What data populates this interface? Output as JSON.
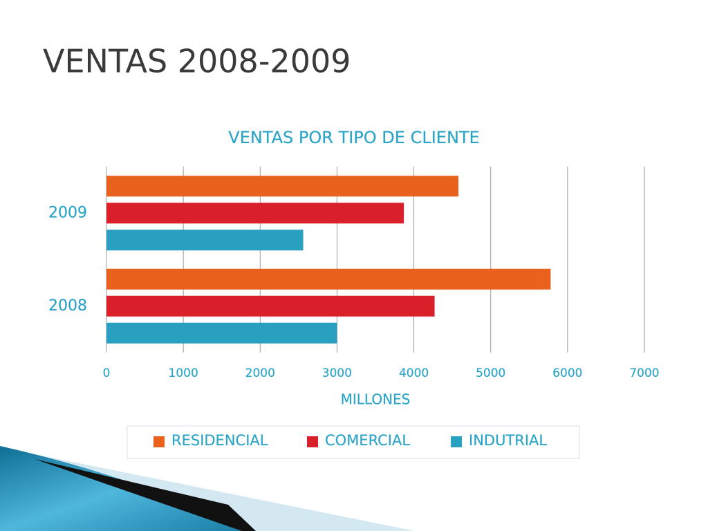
{
  "slide_title": "VENTAS 2008-2009",
  "chart_data": {
    "type": "hbar",
    "title": "VENTAS POR TIPO DE CLIENTE",
    "x_label": "MILLONES",
    "categories": [
      "2008",
      "2009"
    ],
    "series": [
      {
        "name": "RESIDENCIAL",
        "color": "#e8621e",
        "values": [
          5780,
          4580
        ]
      },
      {
        "name": "COMERCIAL",
        "color": "#d9202a",
        "values": [
          4270,
          3870
        ]
      },
      {
        "name": "INDUTRIAL",
        "color": "#2aa0c0",
        "values": [
          3000,
          2560
        ]
      }
    ],
    "xlim": [
      0,
      7000
    ],
    "xticks": [
      0,
      1000,
      2000,
      3000,
      4000,
      5000,
      6000,
      7000
    ],
    "grid": true,
    "legend": "bottom"
  }
}
